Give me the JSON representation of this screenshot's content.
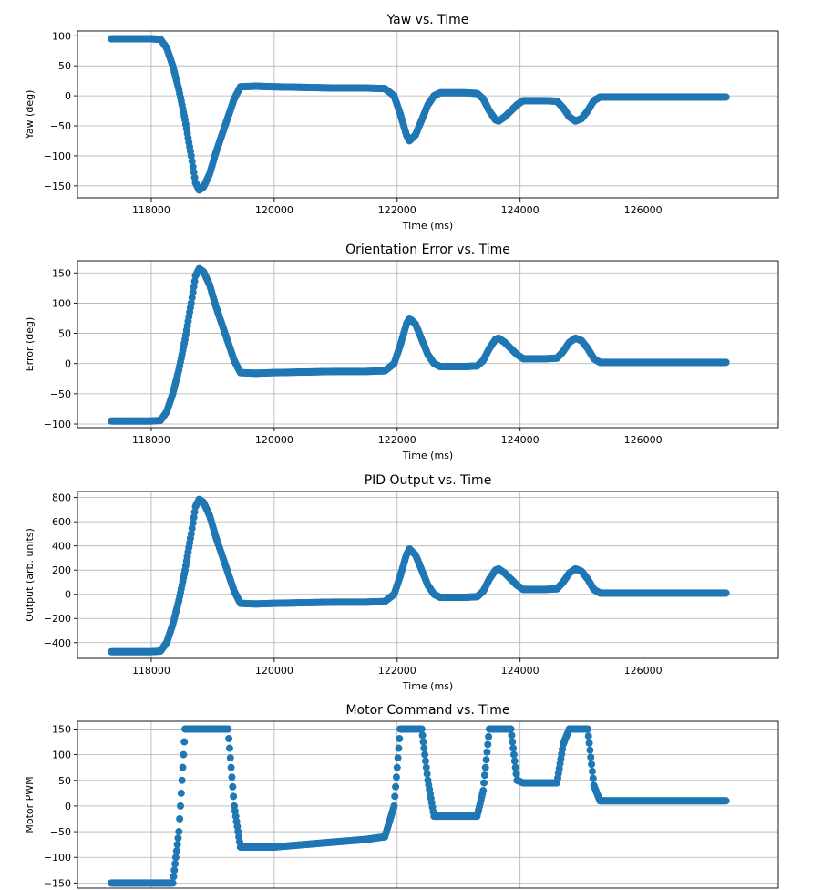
{
  "chart_data": [
    {
      "type": "scatter",
      "title": "Yaw vs. Time",
      "xlabel": "Time (ms)",
      "ylabel": "Yaw (deg)",
      "xlim": [
        116800,
        128200
      ],
      "ylim": [
        -170,
        108
      ],
      "xticks": [
        118000,
        120000,
        122000,
        124000,
        126000
      ],
      "xtick_labels": [
        "118000",
        "120000",
        "122000",
        "124000",
        "126000"
      ],
      "yticks": [
        100,
        50,
        0,
        -50,
        -100,
        -150
      ],
      "ytick_labels": [
        "100",
        "50",
        "0",
        "−50",
        "−100",
        "−150"
      ],
      "grid": true,
      "color": "#1f77b4",
      "series": [
        {
          "x": [
            117350,
            117600,
            117800,
            118000,
            118150,
            118250,
            118350,
            118450,
            118550,
            118650,
            118720,
            118780,
            118850,
            118950,
            119050,
            119150,
            119250,
            119350,
            119450,
            119700,
            120000,
            120500,
            121000,
            121500,
            121800,
            121950,
            122050,
            122150,
            122200,
            122300,
            122400,
            122500,
            122600,
            122700,
            122900,
            123100,
            123300,
            123400,
            123500,
            123600,
            123650,
            123750,
            123850,
            123950,
            124050,
            124200,
            124400,
            124600,
            124700,
            124800,
            124900,
            125000,
            125100,
            125200,
            125300,
            125500,
            126000,
            126500,
            127000,
            127350
          ],
          "y": [
            95,
            95,
            95,
            95,
            94,
            80,
            50,
            10,
            -40,
            -100,
            -145,
            -157,
            -152,
            -130,
            -95,
            -65,
            -35,
            -5,
            15,
            16,
            15,
            14,
            13,
            13,
            12,
            0,
            -30,
            -65,
            -75,
            -65,
            -40,
            -15,
            0,
            5,
            5,
            5,
            4,
            -5,
            -25,
            -40,
            -42,
            -35,
            -25,
            -15,
            -8,
            -8,
            -8,
            -9,
            -20,
            -35,
            -42,
            -38,
            -25,
            -8,
            -2,
            -2,
            -2,
            -2,
            -2,
            -2
          ]
        }
      ]
    },
    {
      "type": "scatter",
      "title": "Orientation Error vs. Time",
      "xlabel": "Time (ms)",
      "ylabel": "Error (deg)",
      "xlim": [
        116800,
        128200
      ],
      "ylim": [
        -106,
        170
      ],
      "xticks": [
        118000,
        120000,
        122000,
        124000,
        126000
      ],
      "xtick_labels": [
        "118000",
        "120000",
        "122000",
        "124000",
        "126000"
      ],
      "yticks": [
        150,
        100,
        50,
        0,
        -50,
        -100
      ],
      "ytick_labels": [
        "150",
        "100",
        "50",
        "0",
        "−50",
        "−100"
      ],
      "grid": true,
      "color": "#1f77b4",
      "series": [
        {
          "x": [
            117350,
            117600,
            117800,
            118000,
            118150,
            118250,
            118350,
            118450,
            118550,
            118650,
            118720,
            118780,
            118850,
            118950,
            119050,
            119150,
            119250,
            119350,
            119450,
            119700,
            120000,
            120500,
            121000,
            121500,
            121800,
            121950,
            122050,
            122150,
            122200,
            122300,
            122400,
            122500,
            122600,
            122700,
            122900,
            123100,
            123300,
            123400,
            123500,
            123600,
            123650,
            123750,
            123850,
            123950,
            124050,
            124200,
            124400,
            124600,
            124700,
            124800,
            124900,
            125000,
            125100,
            125200,
            125300,
            125500,
            126000,
            126500,
            127000,
            127350
          ],
          "y": [
            -95,
            -95,
            -95,
            -95,
            -94,
            -80,
            -50,
            -10,
            40,
            100,
            145,
            157,
            152,
            130,
            95,
            65,
            35,
            5,
            -15,
            -16,
            -15,
            -14,
            -13,
            -13,
            -12,
            0,
            30,
            65,
            75,
            65,
            40,
            15,
            0,
            -5,
            -5,
            -5,
            -4,
            5,
            25,
            40,
            42,
            35,
            25,
            15,
            8,
            8,
            8,
            9,
            20,
            35,
            42,
            38,
            25,
            8,
            2,
            2,
            2,
            2,
            2,
            2
          ]
        }
      ]
    },
    {
      "type": "scatter",
      "title": "PID Output vs. Time",
      "xlabel": "Time (ms)",
      "ylabel": "Output (arb. units)",
      "xlim": [
        116800,
        128200
      ],
      "ylim": [
        -530,
        850
      ],
      "xticks": [
        118000,
        120000,
        122000,
        124000,
        126000
      ],
      "xtick_labels": [
        "118000",
        "120000",
        "122000",
        "124000",
        "126000"
      ],
      "yticks": [
        800,
        600,
        400,
        200,
        0,
        -200,
        -400
      ],
      "ytick_labels": [
        "800",
        "600",
        "400",
        "200",
        "0",
        "−200",
        "−400"
      ],
      "grid": true,
      "color": "#1f77b4",
      "series": [
        {
          "x": [
            117350,
            117600,
            117800,
            118000,
            118150,
            118250,
            118350,
            118450,
            118550,
            118650,
            118720,
            118780,
            118850,
            118950,
            119050,
            119150,
            119250,
            119350,
            119450,
            119700,
            120000,
            120500,
            121000,
            121500,
            121800,
            121950,
            122050,
            122150,
            122200,
            122300,
            122400,
            122500,
            122600,
            122700,
            122900,
            123100,
            123300,
            123400,
            123500,
            123600,
            123650,
            123750,
            123850,
            123950,
            124050,
            124200,
            124400,
            124600,
            124700,
            124800,
            124900,
            125000,
            125100,
            125200,
            125300,
            125500,
            126000,
            126500,
            127000,
            127350
          ],
          "y": [
            -475,
            -475,
            -475,
            -475,
            -470,
            -400,
            -250,
            -50,
            200,
            500,
            725,
            785,
            760,
            650,
            475,
            325,
            175,
            25,
            -75,
            -80,
            -75,
            -70,
            -65,
            -65,
            -60,
            0,
            150,
            325,
            375,
            325,
            200,
            75,
            0,
            -25,
            -25,
            -25,
            -20,
            25,
            125,
            200,
            210,
            175,
            125,
            75,
            40,
            40,
            40,
            45,
            100,
            175,
            210,
            190,
            125,
            40,
            10,
            10,
            10,
            10,
            10,
            10
          ]
        }
      ]
    },
    {
      "type": "scatter",
      "title": "Motor Command vs. Time",
      "xlabel": "",
      "ylabel": "Motor PWM",
      "xlim": [
        116800,
        128200
      ],
      "ylim": [
        -160,
        165
      ],
      "xticks": [],
      "xtick_labels": [],
      "yticks": [
        150,
        100,
        50,
        0,
        -50,
        -100,
        -150
      ],
      "ytick_labels": [
        "150",
        "100",
        "50",
        "0",
        "−50",
        "−100",
        "−150"
      ],
      "grid": true,
      "color": "#1f77b4",
      "series": [
        {
          "x": [
            117350,
            117600,
            117800,
            118000,
            118150,
            118250,
            118350,
            118450,
            118550,
            118650,
            118720,
            118780,
            118850,
            118950,
            119050,
            119150,
            119250,
            119350,
            119450,
            119700,
            120000,
            120500,
            121000,
            121500,
            121800,
            121950,
            122050,
            122150,
            122200,
            122300,
            122400,
            122500,
            122600,
            122700,
            122900,
            123100,
            123300,
            123400,
            123500,
            123600,
            123650,
            123750,
            123850,
            123950,
            124050,
            124200,
            124400,
            124600,
            124700,
            124800,
            124900,
            125000,
            125100,
            125200,
            125300,
            125500,
            126000,
            126500,
            127000,
            127350
          ],
          "y": [
            -150,
            -150,
            -150,
            -150,
            -150,
            -150,
            -150,
            -50,
            150,
            150,
            150,
            150,
            150,
            150,
            150,
            150,
            150,
            0,
            -80,
            -80,
            -80,
            -75,
            -70,
            -65,
            -60,
            0,
            150,
            150,
            150,
            150,
            150,
            50,
            -20,
            -20,
            -20,
            -20,
            -20,
            30,
            150,
            150,
            150,
            150,
            150,
            50,
            45,
            45,
            45,
            45,
            120,
            150,
            150,
            150,
            150,
            40,
            10,
            10,
            10,
            10,
            10,
            10
          ]
        }
      ]
    }
  ]
}
